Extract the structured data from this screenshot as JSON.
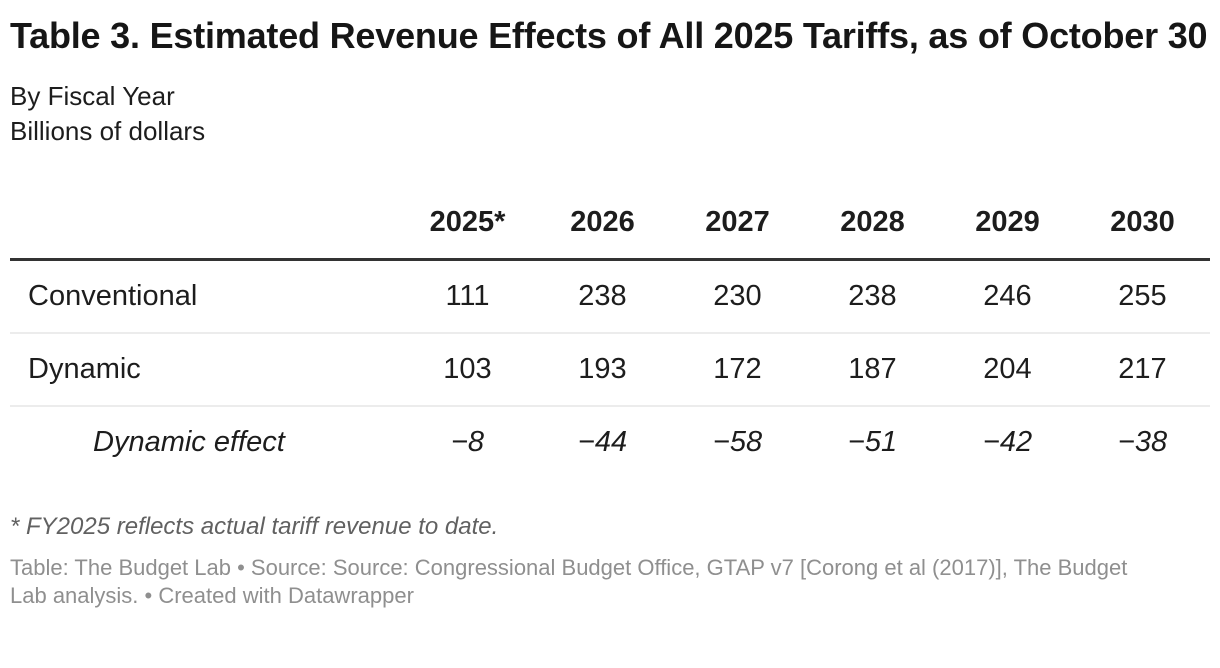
{
  "chart_data": {
    "type": "table",
    "title": "Table 3. Estimated Revenue Effects of All 2025 Tariffs, as of October 30",
    "subtitle_lines": [
      "By Fiscal Year",
      "Billions of dollars"
    ],
    "columns": [
      "2025*",
      "2026",
      "2027",
      "2028",
      "2029",
      "2030"
    ],
    "rows": [
      {
        "label": "Conventional",
        "values": [
          111,
          238,
          230,
          238,
          246,
          255
        ],
        "display": [
          "111",
          "238",
          "230",
          "238",
          "246",
          "255"
        ],
        "italic": false
      },
      {
        "label": "Dynamic",
        "values": [
          103,
          193,
          172,
          187,
          204,
          217
        ],
        "display": [
          "103",
          "193",
          "172",
          "187",
          "204",
          "217"
        ],
        "italic": false
      },
      {
        "label": "Dynamic effect",
        "values": [
          -8,
          -44,
          -58,
          -51,
          -42,
          -38
        ],
        "display": [
          "−8",
          "−44",
          "−58",
          "−51",
          "−42",
          "−38"
        ],
        "italic": true
      }
    ],
    "footnote": "* FY2025 reflects actual tariff revenue to date.",
    "caption": "Table: The Budget Lab • Source: Source: Congressional Budget Office, GTAP v7 [Corong et al (2017)], The Budget Lab analysis. • Created with Datawrapper",
    "layout": {
      "legend": "none",
      "grid": "horizontal-row-rules",
      "header_rule": "thick-top-of-body",
      "value_alignment": "center"
    },
    "colors": {
      "text": "#1d1d1d",
      "title": "#161616",
      "header_rule": "#333333",
      "row_rule": "#ececec",
      "footnote": "#616161",
      "caption": "#8f8f8f",
      "background": "#ffffff"
    }
  }
}
